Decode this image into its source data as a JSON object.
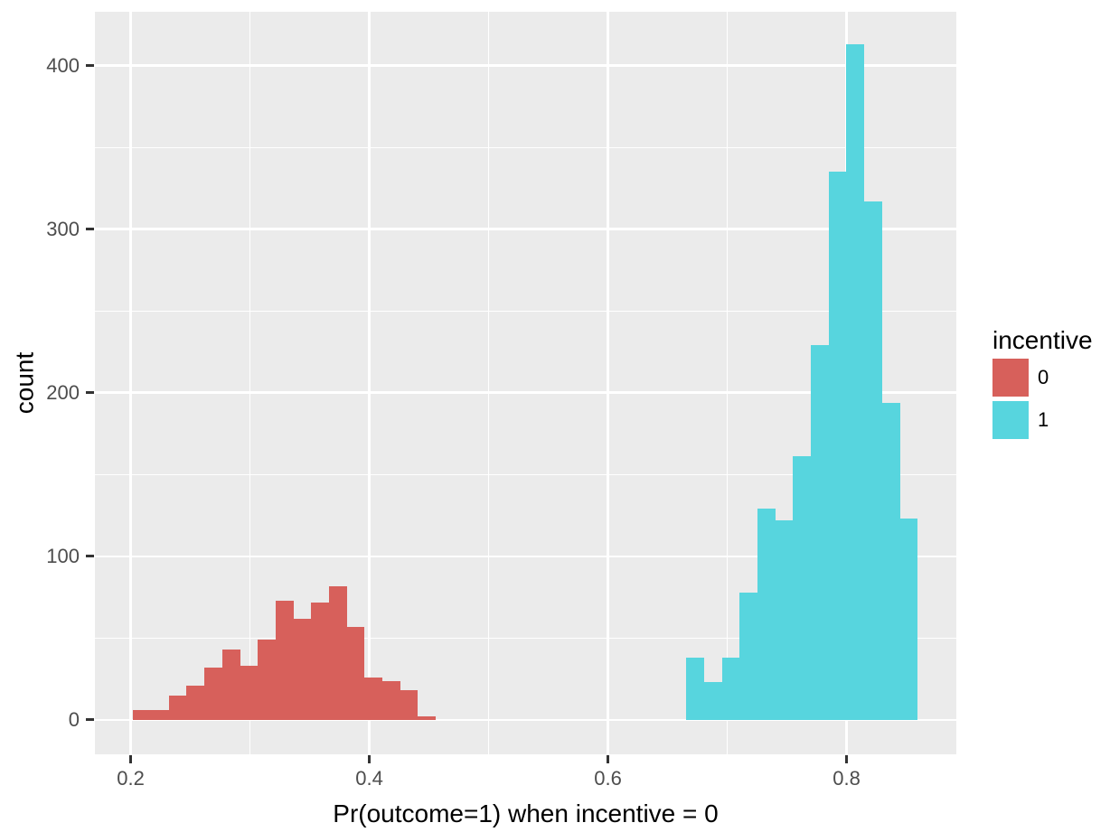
{
  "styles": {
    "panel_bg": "#EBEBEB",
    "grid_color": "#FFFFFF",
    "tick_mark_color": "#333333",
    "tick_label_color": "#4D4D4D",
    "axis_title_color": "#000000",
    "background": "#FFFFFF",
    "color_incentive_0": "#D7605B",
    "color_incentive_1": "#57D5DE"
  },
  "chart_data": {
    "type": "bar",
    "subtype": "histogram",
    "title": "",
    "xlabel": "Pr(outcome=1) when incentive = 0",
    "ylabel": "count",
    "grid": true,
    "x_domain": [
      0.17,
      0.892
    ],
    "y_domain": [
      -21,
      433
    ],
    "x_ticks": {
      "major": [
        0.2,
        0.4,
        0.6,
        0.8
      ],
      "labels": [
        "0.2",
        "0.4",
        "0.6",
        "0.8"
      ],
      "minor": [
        0.3,
        0.5,
        0.7
      ]
    },
    "y_ticks": {
      "major": [
        0,
        100,
        200,
        300,
        400
      ],
      "labels": [
        "0",
        "100",
        "200",
        "300",
        "400"
      ],
      "minor": [
        50,
        150,
        250,
        350
      ]
    },
    "legend": {
      "title": "incentive",
      "position": "right",
      "entries": [
        {
          "label": "0",
          "color": "#D7605B"
        },
        {
          "label": "1",
          "color": "#57D5DE"
        }
      ]
    },
    "series": [
      {
        "name": "incentive = 0",
        "color": "#D7605B",
        "bin_start": 0.202,
        "bin_width": 0.0149,
        "counts": [
          6,
          6,
          15,
          21,
          32,
          43,
          33,
          49,
          73,
          62,
          72,
          82,
          57,
          26,
          24,
          18,
          2
        ]
      },
      {
        "name": "incentive = 1",
        "color": "#57D5DE",
        "bin_start": 0.6657,
        "bin_width": 0.0149,
        "counts": [
          38,
          23,
          38,
          78,
          129,
          122,
          161,
          229,
          335,
          413,
          317,
          194,
          123
        ]
      }
    ]
  }
}
